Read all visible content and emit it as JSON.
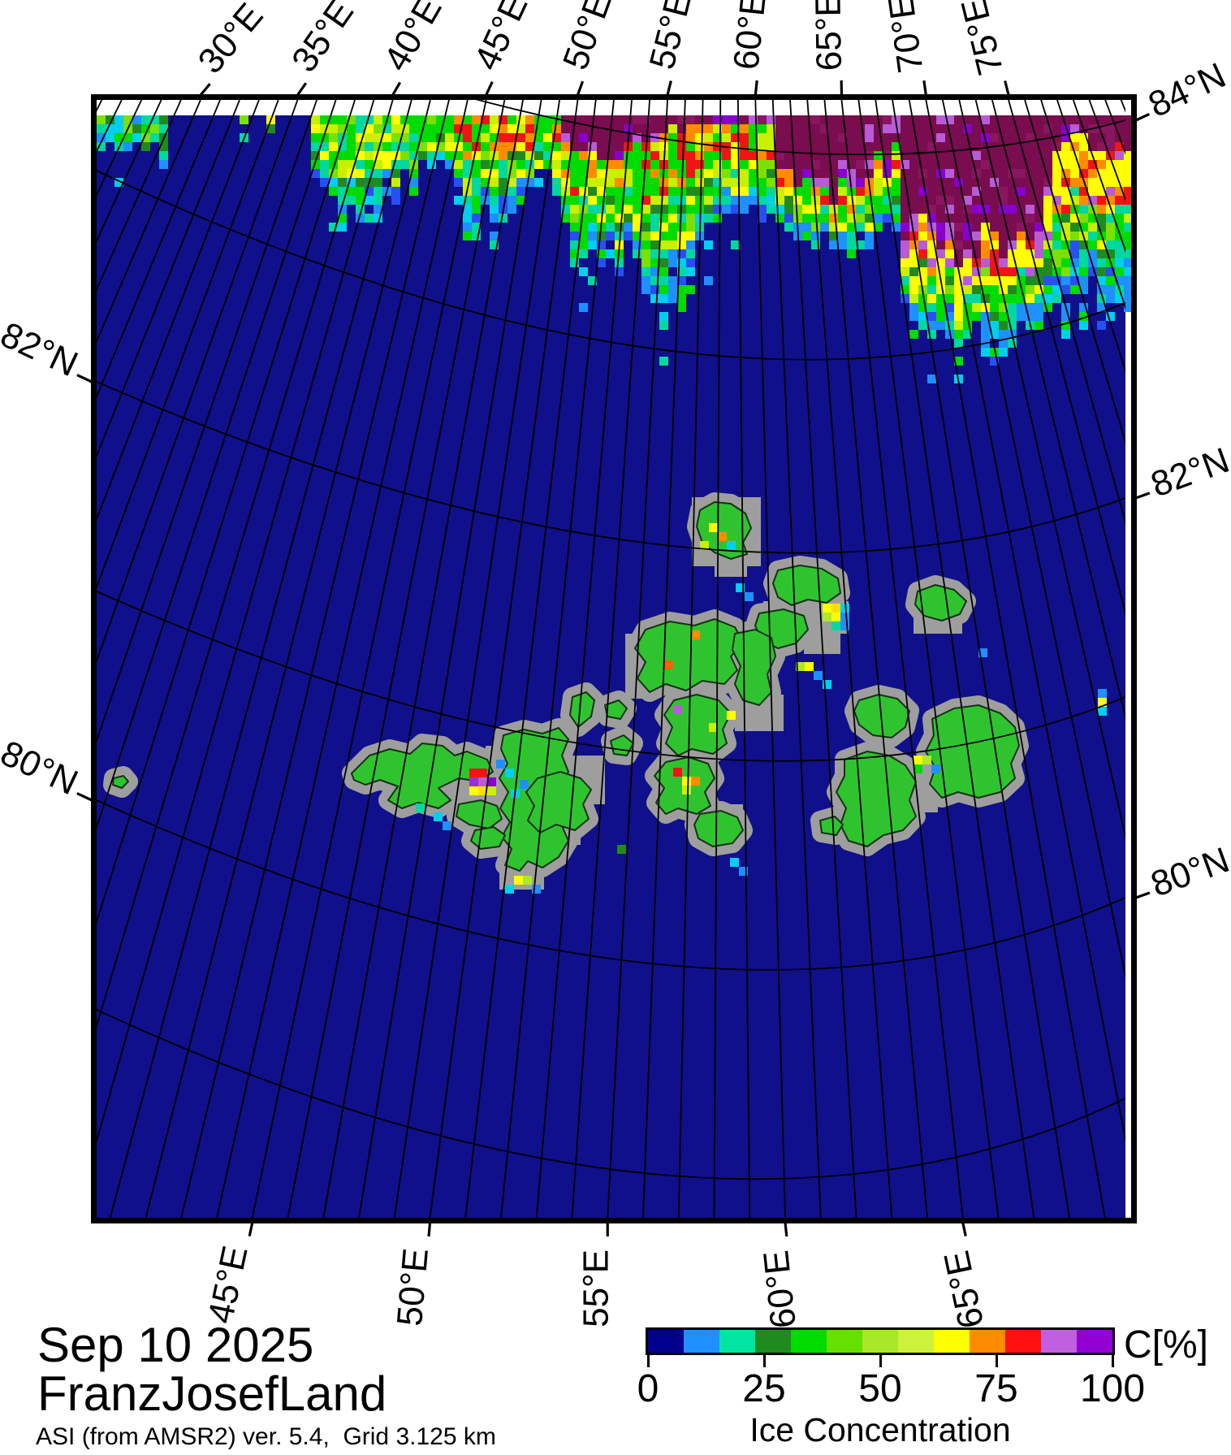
{
  "map": {
    "date": "Sep 10 2025",
    "region": "FranzJosefLand",
    "source": "ASI (from AMSR2) ver. 5.4,  Grid 3.125 km",
    "lon_labels_top": [
      {
        "text": "30°E",
        "lon": 30
      },
      {
        "text": "35°E",
        "lon": 35
      },
      {
        "text": "40°E",
        "lon": 40
      },
      {
        "text": "45°E",
        "lon": 45
      },
      {
        "text": "50°E",
        "lon": 50
      },
      {
        "text": "55°E",
        "lon": 55
      },
      {
        "text": "60°E",
        "lon": 60
      },
      {
        "text": "65°E",
        "lon": 65
      },
      {
        "text": "70°E",
        "lon": 70
      },
      {
        "text": "75°E",
        "lon": 75
      }
    ],
    "lon_labels_bottom": [
      {
        "text": "45°E",
        "lon": 45
      },
      {
        "text": "50°E",
        "lon": 50
      },
      {
        "text": "55°E",
        "lon": 55
      },
      {
        "text": "60°E",
        "lon": 60
      },
      {
        "text": "65°E",
        "lon": 65
      }
    ],
    "lat_labels_left": [
      {
        "text": "82°N",
        "lat": 82
      },
      {
        "text": "80°N",
        "lat": 80
      }
    ],
    "lat_labels_right": [
      {
        "text": "84°N",
        "lat": 84
      },
      {
        "text": "82°N",
        "lat": 82
      },
      {
        "text": "80°N",
        "lat": 80
      }
    ]
  },
  "legend": {
    "caption": "Ice Concentration",
    "unit": "C[%]",
    "tick_labels": [
      "0",
      "25",
      "50",
      "75",
      "100"
    ],
    "tick_values": [
      0,
      25,
      50,
      75,
      100
    ],
    "segment_colors": [
      "#00008C",
      "#1E90FF",
      "#00E6A0",
      "#1F8B1F",
      "#00DC00",
      "#66E000",
      "#A8E82A",
      "#CCF23C",
      "#FFFF00",
      "#FF8C00",
      "#FF1010",
      "#C060E0",
      "#9400D3"
    ]
  },
  "colors": {
    "ocean": "#10108C",
    "land": "#2FC42F",
    "coast_mask": "#9E9E9E",
    "ice_pack": "#7A0C50",
    "graticule": "#000000",
    "frame": "#000000"
  }
}
